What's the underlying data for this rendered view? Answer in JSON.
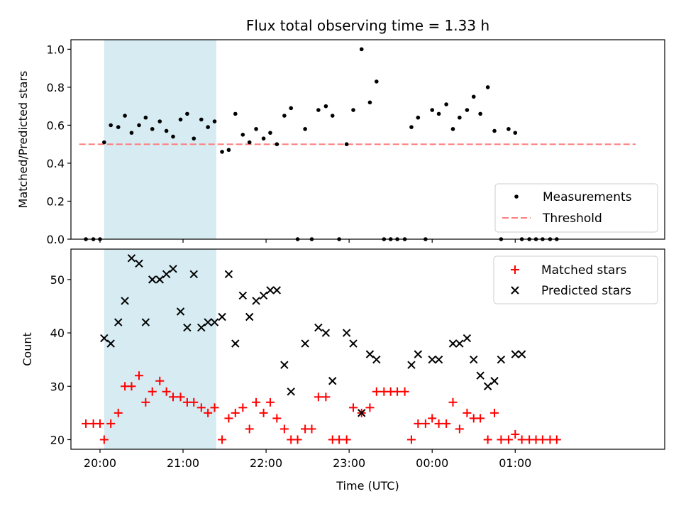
{
  "chart_data": {
    "type": "scatter",
    "title": "Flux total observing time = 1.33 h",
    "xlabel": "Time (UTC)",
    "x_ticks": [
      "20:00",
      "21:00",
      "22:00",
      "23:00",
      "00:00",
      "01:00"
    ],
    "x_range_hours": [
      19.65,
      26.8
    ],
    "x_tick_hours": [
      20,
      21,
      22,
      23,
      24,
      25
    ],
    "shaded_region_hours": [
      20.05,
      21.4
    ],
    "shaded_color": "#add8e6",
    "panels": [
      {
        "ylabel": "Matched/Predicted stars",
        "ylim": [
          0,
          1.05
        ],
        "yticks": [
          "0.0",
          "0.2",
          "0.4",
          "0.6",
          "0.8",
          "1.0"
        ],
        "ytick_values": [
          0,
          0.2,
          0.4,
          0.6,
          0.8,
          1.0
        ],
        "legend": [
          "Measurements",
          "Threshold"
        ],
        "legend_position": "lower right",
        "threshold": {
          "value": 0.5,
          "x_range_hours": [
            19.75,
            26.45
          ],
          "color": "#ff7f7f"
        },
        "series": [
          {
            "name": "Measurements",
            "marker": "dot",
            "color": "#000000",
            "x": [
              19.83,
              19.92,
              20.0,
              20.05,
              20.13,
              20.22,
              20.3,
              20.38,
              20.47,
              20.55,
              20.63,
              20.72,
              20.8,
              20.88,
              20.97,
              21.05,
              21.13,
              21.22,
              21.3,
              21.38,
              21.47,
              21.55,
              21.63,
              21.72,
              21.8,
              21.88,
              21.97,
              22.05,
              22.13,
              22.22,
              22.3,
              22.38,
              22.47,
              22.55,
              22.63,
              22.72,
              22.8,
              22.88,
              22.97,
              23.05,
              23.15,
              23.25,
              23.33,
              23.42,
              23.5,
              23.58,
              23.67,
              23.75,
              23.83,
              23.92,
              24.0,
              24.08,
              24.17,
              24.25,
              24.33,
              24.42,
              24.5,
              24.58,
              24.67,
              24.75,
              24.83,
              24.92,
              25.0,
              25.08,
              25.17,
              25.25,
              25.33,
              25.42,
              25.5
            ],
            "y": [
              0,
              0,
              0,
              0.51,
              0.6,
              0.59,
              0.65,
              0.56,
              0.6,
              0.64,
              0.58,
              0.62,
              0.57,
              0.54,
              0.63,
              0.66,
              0.53,
              0.63,
              0.59,
              0.62,
              0.46,
              0.47,
              0.66,
              0.55,
              0.51,
              0.58,
              0.53,
              0.56,
              0.5,
              0.65,
              0.69,
              0,
              0.58,
              0,
              0.68,
              0.7,
              0.65,
              0,
              0.5,
              0.68,
              1.0,
              0.72,
              0.83,
              0,
              0,
              0,
              0,
              0.59,
              0.64,
              0,
              0.68,
              0.66,
              0.71,
              0.58,
              0.64,
              0.68,
              0.75,
              0.66,
              0.8,
              0.57,
              0,
              0.58,
              0.56,
              0,
              0,
              0,
              0,
              0,
              0
            ]
          }
        ]
      },
      {
        "ylabel": "Count",
        "ylim": [
          18.2,
          55.7
        ],
        "yticks": [
          "20",
          "30",
          "40",
          "50"
        ],
        "ytick_values": [
          20,
          30,
          40,
          50
        ],
        "legend": [
          "Matched stars",
          "Predicted stars"
        ],
        "legend_position": "upper right",
        "series": [
          {
            "name": "Matched stars",
            "marker": "plus",
            "color": "#ff0000",
            "x": [
              19.83,
              19.92,
              20.0,
              20.05,
              20.13,
              20.22,
              20.3,
              20.38,
              20.47,
              20.55,
              20.63,
              20.72,
              20.8,
              20.88,
              20.97,
              21.05,
              21.13,
              21.22,
              21.3,
              21.38,
              21.47,
              21.55,
              21.63,
              21.72,
              21.8,
              21.88,
              21.97,
              22.05,
              22.13,
              22.22,
              22.3,
              22.38,
              22.47,
              22.55,
              22.63,
              22.72,
              22.8,
              22.88,
              22.97,
              23.05,
              23.15,
              23.25,
              23.33,
              23.42,
              23.5,
              23.58,
              23.67,
              23.75,
              23.83,
              23.92,
              24.0,
              24.08,
              24.17,
              24.25,
              24.33,
              24.42,
              24.5,
              24.58,
              24.67,
              24.75,
              24.83,
              24.92,
              25.0,
              25.08,
              25.17,
              25.25,
              25.33,
              25.42,
              25.5
            ],
            "y": [
              23,
              23,
              23,
              20,
              23,
              25,
              30,
              30,
              32,
              27,
              29,
              31,
              29,
              28,
              28,
              27,
              27,
              26,
              25,
              26,
              20,
              24,
              25,
              26,
              22,
              27,
              25,
              27,
              24,
              22,
              20,
              20,
              22,
              22,
              28,
              28,
              20,
              20,
              20,
              26,
              25,
              26,
              29,
              29,
              29,
              29,
              29,
              20,
              23,
              23,
              24,
              23,
              23,
              27,
              22,
              25,
              24,
              24,
              20,
              25,
              20,
              20,
              21,
              20,
              20,
              20,
              20,
              20,
              20
            ]
          },
          {
            "name": "Predicted stars",
            "marker": "x",
            "color": "#000000",
            "x": [
              20.05,
              20.13,
              20.22,
              20.3,
              20.38,
              20.47,
              20.55,
              20.63,
              20.72,
              20.8,
              20.88,
              20.97,
              21.05,
              21.13,
              21.22,
              21.3,
              21.38,
              21.47,
              21.55,
              21.63,
              21.72,
              21.8,
              21.88,
              21.97,
              22.05,
              22.13,
              22.22,
              22.3,
              22.47,
              22.63,
              22.72,
              22.8,
              22.97,
              23.05,
              23.15,
              23.25,
              23.33,
              23.75,
              23.83,
              24.0,
              24.08,
              24.25,
              24.33,
              24.42,
              24.5,
              24.58,
              24.67,
              24.75,
              24.83,
              25.0,
              25.08
            ],
            "y": [
              39,
              38,
              42,
              46,
              54,
              53,
              42,
              50,
              50,
              51,
              52,
              44,
              41,
              51,
              41,
              42,
              42,
              43,
              51,
              38,
              47,
              43,
              46,
              47,
              48,
              48,
              34,
              29,
              38,
              41,
              40,
              31,
              40,
              38,
              25,
              36,
              35,
              34,
              36,
              35,
              35,
              38,
              38,
              39,
              35,
              32,
              30,
              31,
              35,
              36,
              36
            ]
          }
        ]
      }
    ]
  }
}
